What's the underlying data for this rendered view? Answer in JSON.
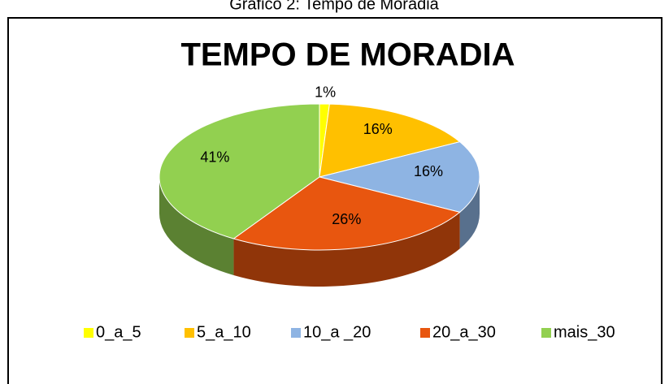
{
  "caption": "Gráfico 2: Tempo de Moradia",
  "chart_data": {
    "type": "pie3d",
    "title": "TEMPO DE MORADIA",
    "categories": [
      "0_a_5",
      "5_a_10",
      "10_a _20",
      "20_a_30",
      "mais_30"
    ],
    "values": [
      1,
      16,
      16,
      26,
      41
    ],
    "value_labels": [
      "1%",
      "16%",
      "16%",
      "26%",
      "41%"
    ],
    "colors": [
      "#ffff00",
      "#ffc000",
      "#8eb4e3",
      "#e8560f",
      "#92d050"
    ],
    "legend": "bottom"
  }
}
